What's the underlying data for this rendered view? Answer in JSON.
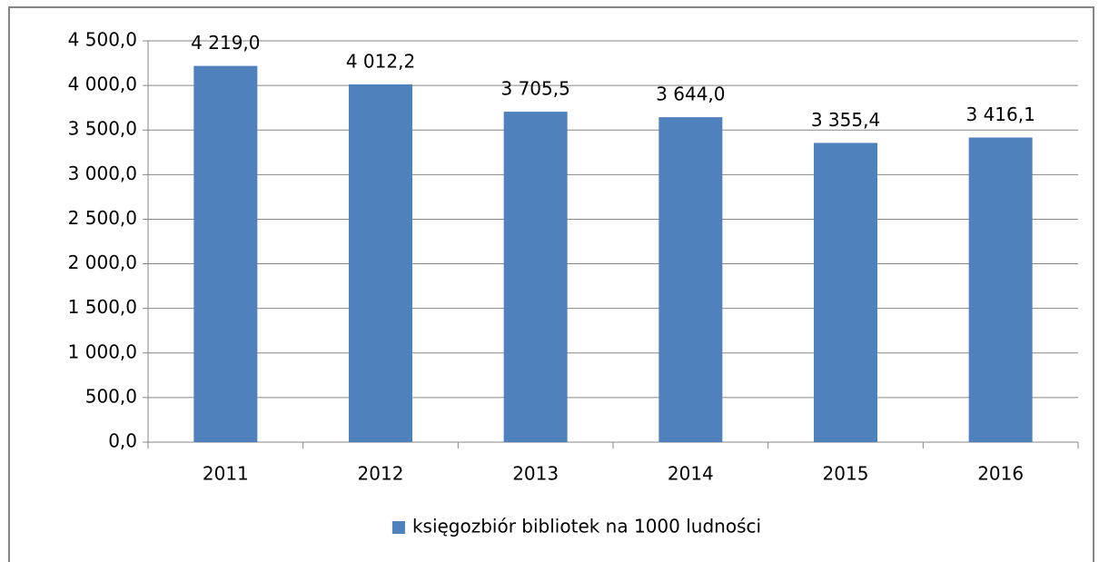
{
  "chart_data": {
    "type": "bar",
    "categories": [
      "2011",
      "2012",
      "2013",
      "2014",
      "2015",
      "2016"
    ],
    "series": [
      {
        "name": "księgozbiór bibliotek na 1000 ludności",
        "color": "#4f81bd",
        "values": [
          4219.0,
          4012.2,
          3705.5,
          3644.0,
          3355.4,
          3416.1
        ],
        "value_labels": [
          "4 219,0",
          "4 012,2",
          "3 705,5",
          "3 644,0",
          "3 355,4",
          "3 416,1"
        ]
      }
    ],
    "ylim": [
      0,
      4500
    ],
    "yticks": [
      {
        "value": 0,
        "label": "0,0"
      },
      {
        "value": 500,
        "label": "500,0"
      },
      {
        "value": 1000,
        "label": "1 000,0"
      },
      {
        "value": 1500,
        "label": "1 500,0"
      },
      {
        "value": 2000,
        "label": "2 000,0"
      },
      {
        "value": 2500,
        "label": "2 500,0"
      },
      {
        "value": 3000,
        "label": "3 000,0"
      },
      {
        "value": 3500,
        "label": "3 500,0"
      },
      {
        "value": 4000,
        "label": "4 000,0"
      },
      {
        "value": 4500,
        "label": "4 500,0"
      }
    ],
    "grid": true,
    "legend": "bottom"
  }
}
